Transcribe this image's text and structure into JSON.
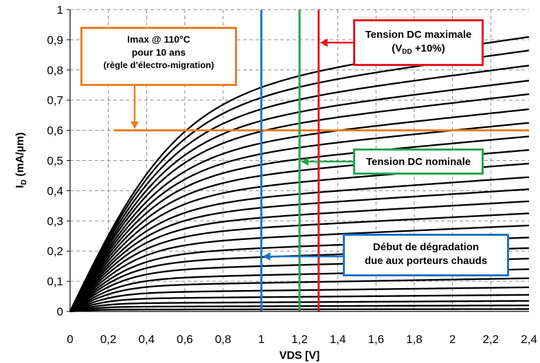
{
  "chart_data": {
    "type": "line",
    "xlabel": "VDS [V]",
    "ylabel_main": "I",
    "ylabel_sub": "D",
    "ylabel_rest": " (mA/µm)",
    "xlim": [
      0,
      2.4
    ],
    "ylim": [
      0,
      1
    ],
    "x_ticks": [
      "0",
      "0,2",
      "0,4",
      "0,6",
      "0,8",
      "1",
      "1,2",
      "1,4",
      "1,6",
      "1,8",
      "2",
      "2,2",
      "2,4"
    ],
    "y_ticks": [
      "0",
      "0,1",
      "0,2",
      "0,3",
      "0,4",
      "0,5",
      "0,6",
      "0,7",
      "0,8",
      "0,9",
      "1"
    ],
    "grid": true,
    "curve_color": "#000000",
    "curve_end_values_at_2_4V": [
      0.91,
      0.865,
      0.815,
      0.765,
      0.72,
      0.67,
      0.625,
      0.58,
      0.535,
      0.49,
      0.445,
      0.405,
      0.365,
      0.325,
      0.285,
      0.245,
      0.21,
      0.175,
      0.14,
      0.11,
      0.08,
      0.055,
      0.035,
      0.02,
      0.008
    ],
    "reference_lines": [
      {
        "orientation": "horizontal",
        "y": 0.6,
        "x_start": 0.23,
        "x_end": 2.4,
        "color": "#e67e22"
      },
      {
        "orientation": "vertical",
        "x": 1.0,
        "color": "#1a73c9"
      },
      {
        "orientation": "vertical",
        "x": 1.2,
        "color": "#22a64b"
      },
      {
        "orientation": "vertical",
        "x": 1.3,
        "color": "#e8141c"
      }
    ],
    "annotations": {
      "imax": {
        "line1": "Imax @ 110°C",
        "line2": "pour 10 ans",
        "line3": "(règle d’électro-migration)",
        "color": "#e67e22"
      },
      "max_dc": {
        "line1": "Tension DC maximale",
        "line2_pre": "(V",
        "line2_sub": "DD",
        "line2_post": " +10%)",
        "color": "#e8141c"
      },
      "nominal_dc": {
        "line1": "Tension DC nominale",
        "color": "#22a64b"
      },
      "hot_carrier": {
        "line1": "Début de dégradation",
        "line2": "due aux porteurs chauds",
        "color": "#1a73c9"
      }
    }
  }
}
